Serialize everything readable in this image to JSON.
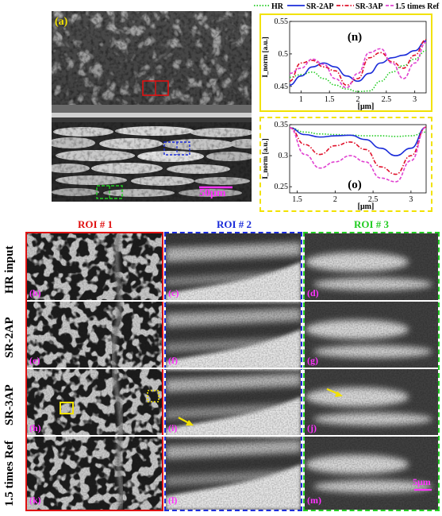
{
  "panel_a": {
    "label": "(a)",
    "scale_bar_label": "50μm"
  },
  "legend": {
    "entries": [
      {
        "name": "HR",
        "color": "#22cc22",
        "style": "dotted"
      },
      {
        "name": "SR-2AP",
        "color": "#1a2bd9",
        "style": "solid"
      },
      {
        "name": "SR-3AP",
        "color": "#e0102a",
        "style": "dashdot"
      },
      {
        "name": "1.5 times Ref",
        "color": "#e040d0",
        "style": "dashed"
      }
    ]
  },
  "chart_data": [
    {
      "type": "line",
      "panel": "(n)",
      "xlabel": "[μm]",
      "ylabel": "I_norm [a.u.]",
      "xlim": [
        0.8,
        3.2
      ],
      "ylim": [
        0.44,
        0.55
      ],
      "xticks": [
        "1",
        "1.5",
        "2",
        "2.5",
        "3"
      ],
      "yticks": [
        "0.45",
        "0.5",
        "0.55"
      ],
      "x": [
        0.8,
        1.0,
        1.2,
        1.4,
        1.6,
        1.8,
        2.0,
        2.2,
        2.4,
        2.6,
        2.8,
        3.0,
        3.2
      ],
      "series": [
        {
          "name": "HR",
          "values": [
            0.464,
            0.468,
            0.472,
            0.462,
            0.452,
            0.446,
            0.442,
            0.443,
            0.458,
            0.472,
            0.482,
            0.492,
            0.505
          ]
        },
        {
          "name": "SR-2AP",
          "values": [
            0.452,
            0.466,
            0.48,
            0.486,
            0.48,
            0.466,
            0.458,
            0.47,
            0.486,
            0.494,
            0.498,
            0.505,
            0.52
          ]
        },
        {
          "name": "SR-3AP",
          "values": [
            0.458,
            0.486,
            0.49,
            0.48,
            0.474,
            0.452,
            0.462,
            0.494,
            0.502,
            0.488,
            0.478,
            0.498,
            0.522
          ]
        },
        {
          "name": "1.5 times Ref",
          "values": [
            0.47,
            0.478,
            0.492,
            0.484,
            0.462,
            0.448,
            0.47,
            0.502,
            0.508,
            0.486,
            0.462,
            0.486,
            0.518
          ]
        }
      ]
    },
    {
      "type": "line",
      "panel": "(o)",
      "xlabel": "[μm]",
      "ylabel": "I_norm [a.u.]",
      "xlim": [
        1.4,
        3.2
      ],
      "ylim": [
        0.24,
        0.35
      ],
      "xticks": [
        "1.5",
        "2",
        "2.5",
        "3"
      ],
      "yticks": [
        "0.25",
        "0.3",
        "0.35"
      ],
      "x": [
        1.4,
        1.6,
        1.8,
        2.0,
        2.2,
        2.4,
        2.6,
        2.8,
        3.0,
        3.2
      ],
      "series": [
        {
          "name": "HR",
          "values": [
            0.345,
            0.338,
            0.335,
            0.334,
            0.333,
            0.332,
            0.332,
            0.331,
            0.332,
            0.338
          ]
        },
        {
          "name": "SR-2AP",
          "values": [
            0.345,
            0.334,
            0.33,
            0.332,
            0.333,
            0.326,
            0.312,
            0.3,
            0.312,
            0.346
          ]
        },
        {
          "name": "SR-3AP",
          "values": [
            0.345,
            0.318,
            0.302,
            0.316,
            0.322,
            0.31,
            0.282,
            0.27,
            0.3,
            0.346
          ]
        },
        {
          "name": "1.5 times Ref",
          "values": [
            0.345,
            0.302,
            0.28,
            0.29,
            0.3,
            0.29,
            0.264,
            0.258,
            0.292,
            0.346
          ]
        }
      ]
    }
  ],
  "grid": {
    "columns": [
      {
        "label": "ROI # 1",
        "color": "#e01010"
      },
      {
        "label": "ROI # 2",
        "color": "#1a2bd9"
      },
      {
        "label": "ROI # 3",
        "color": "#22cc22"
      }
    ],
    "rows": [
      "HR input",
      "SR-2AP",
      "SR-3AP",
      "1.5 times Ref"
    ],
    "tile_labels": [
      [
        "(b)",
        "(c)",
        "(d)"
      ],
      [
        "(e)",
        "(f)",
        "(g)"
      ],
      [
        "(h)",
        "(i)",
        "(j)"
      ],
      [
        "(k)",
        "(l)",
        "(m)"
      ]
    ],
    "scale_bar_label": "5μm"
  }
}
